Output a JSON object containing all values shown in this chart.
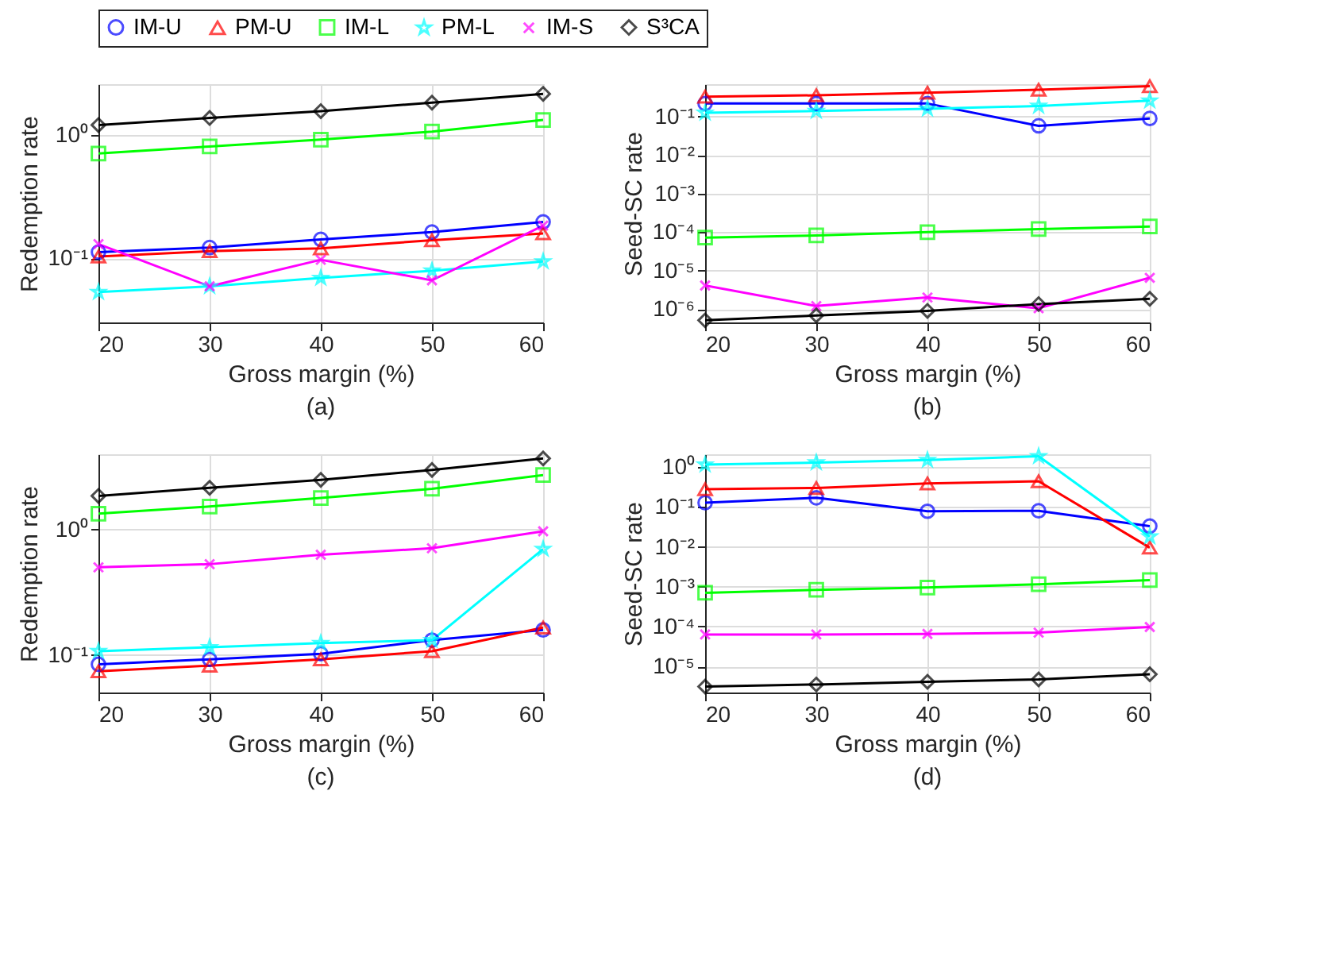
{
  "chart_data": [
    {
      "type": "line",
      "xlabel": "Gross margin (%)",
      "ylabel": "Redemption rate",
      "annotations": [
        "(a)"
      ],
      "x": [
        20,
        30,
        40,
        50,
        60
      ],
      "xlim": [
        20,
        60
      ],
      "xticks": [
        20,
        30,
        40,
        50,
        60
      ],
      "log": "y",
      "ylim": [
        0.03,
        2.6
      ],
      "yticks": [
        {
          "value": 0.1,
          "label": "10⁻¹"
        },
        {
          "value": 1,
          "label": "10⁰"
        }
      ],
      "grid": true,
      "legend": "top",
      "line_style": "solid",
      "series": [
        {
          "name": "IM-U",
          "color": "#0000ff",
          "marker": "circle",
          "values": [
            0.112,
            0.122,
            0.142,
            0.163,
            0.197
          ]
        },
        {
          "name": "PM-U",
          "color": "#ff0000",
          "marker": "triangle",
          "values": [
            0.103,
            0.114,
            0.12,
            0.14,
            0.159
          ]
        },
        {
          "name": "IM-L",
          "color": "#00ff00",
          "marker": "square",
          "values": [
            0.71,
            0.81,
            0.92,
            1.07,
            1.33
          ]
        },
        {
          "name": "PM-L",
          "color": "#00ffff",
          "marker": "star",
          "values": [
            0.053,
            0.059,
            0.069,
            0.079,
            0.094
          ]
        },
        {
          "name": "IM-S",
          "color": "#ff00ff",
          "marker": "cross",
          "values": [
            0.13,
            0.059,
            0.097,
            0.066,
            0.184
          ]
        },
        {
          "name": "S³CA",
          "color": "#000000",
          "marker": "diamond",
          "values": [
            1.21,
            1.38,
            1.57,
            1.84,
            2.17
          ]
        }
      ]
    },
    {
      "type": "line",
      "xlabel": "Gross margin (%)",
      "ylabel": "Seed-SC rate",
      "annotations": [
        "(b)"
      ],
      "x": [
        20,
        30,
        40,
        50,
        60
      ],
      "xlim": [
        20,
        60
      ],
      "xticks": [
        20,
        30,
        40,
        50,
        60
      ],
      "log": "y",
      "ylim": [
        4.5e-07,
        0.7
      ],
      "yticks": [
        {
          "value": 1e-06,
          "label": "10⁻⁶"
        },
        {
          "value": 1e-05,
          "label": "10⁻⁵"
        },
        {
          "value": 0.0001,
          "label": "10⁻⁴"
        },
        {
          "value": 0.001,
          "label": "10⁻³"
        },
        {
          "value": 0.01,
          "label": "10⁻²"
        },
        {
          "value": 0.1,
          "label": "10⁻¹"
        }
      ],
      "grid": true,
      "line_style": "solid",
      "series": [
        {
          "name": "IM-U",
          "color": "#0000ff",
          "marker": "circle",
          "values": [
            0.22,
            0.22,
            0.22,
            0.058,
            0.09
          ]
        },
        {
          "name": "PM-U",
          "color": "#ff0000",
          "marker": "triangle",
          "values": [
            0.33,
            0.36,
            0.42,
            0.5,
            0.62
          ]
        },
        {
          "name": "IM-L",
          "color": "#00ff00",
          "marker": "square",
          "values": [
            7.2e-05,
            8.2e-05,
            0.0001,
            0.00012,
            0.00014
          ]
        },
        {
          "name": "PM-L",
          "color": "#00ffff",
          "marker": "star",
          "values": [
            0.126,
            0.14,
            0.16,
            0.19,
            0.26
          ]
        },
        {
          "name": "IM-S",
          "color": "#ff00ff",
          "marker": "cross",
          "values": [
            4.1e-06,
            1.2e-06,
            2e-06,
            1.05e-06,
            6.5e-06
          ]
        },
        {
          "name": "S³CA",
          "color": "#000000",
          "marker": "diamond",
          "values": [
            5.1e-07,
            6.8e-07,
            9e-07,
            1.35e-06,
            1.85e-06
          ]
        }
      ]
    },
    {
      "type": "line",
      "xlabel": "Gross margin (%)",
      "ylabel": "Redemption rate",
      "annotations": [
        "(c)"
      ],
      "x": [
        20,
        30,
        40,
        50,
        60
      ],
      "xlim": [
        20,
        60
      ],
      "xticks": [
        20,
        30,
        40,
        50,
        60
      ],
      "log": "y",
      "ylim": [
        0.05,
        4
      ],
      "yticks": [
        {
          "value": 0.1,
          "label": "10⁻¹"
        },
        {
          "value": 1,
          "label": "10⁰"
        }
      ],
      "grid": true,
      "line_style": "solid",
      "series": [
        {
          "name": "IM-U",
          "color": "#0000ff",
          "marker": "circle",
          "values": [
            0.084,
            0.092,
            0.102,
            0.131,
            0.158
          ]
        },
        {
          "name": "PM-U",
          "color": "#ff0000",
          "marker": "triangle",
          "values": [
            0.074,
            0.082,
            0.092,
            0.107,
            0.165
          ]
        },
        {
          "name": "IM-L",
          "color": "#00ff00",
          "marker": "square",
          "values": [
            1.34,
            1.53,
            1.79,
            2.12,
            2.73
          ]
        },
        {
          "name": "PM-L",
          "color": "#00ffff",
          "marker": "star",
          "values": [
            0.107,
            0.115,
            0.124,
            0.131,
            0.7
          ]
        },
        {
          "name": "IM-S",
          "color": "#ff00ff",
          "marker": "cross",
          "values": [
            0.5,
            0.53,
            0.63,
            0.71,
            0.97
          ]
        },
        {
          "name": "S³CA",
          "color": "#000000",
          "marker": "diamond",
          "values": [
            1.86,
            2.16,
            2.5,
            3.0,
            3.7
          ]
        }
      ]
    },
    {
      "type": "line",
      "xlabel": "Gross margin (%)",
      "ylabel": "Seed-SC rate",
      "annotations": [
        "(d)"
      ],
      "x": [
        20,
        30,
        40,
        50,
        60
      ],
      "xlim": [
        20,
        60
      ],
      "xticks": [
        20,
        30,
        40,
        50,
        60
      ],
      "log": "y",
      "ylim": [
        2.2e-06,
        2.1
      ],
      "yticks": [
        {
          "value": 1e-05,
          "label": "10⁻⁵"
        },
        {
          "value": 0.0001,
          "label": "10⁻⁴"
        },
        {
          "value": 0.001,
          "label": "10⁻³"
        },
        {
          "value": 0.01,
          "label": "10⁻²"
        },
        {
          "value": 0.1,
          "label": "10⁻¹"
        },
        {
          "value": 1,
          "label": "10⁰"
        }
      ],
      "grid": true,
      "line_style": "solid",
      "series": [
        {
          "name": "IM-U",
          "color": "#0000ff",
          "marker": "circle",
          "values": [
            0.128,
            0.17,
            0.078,
            0.08,
            0.033
          ]
        },
        {
          "name": "PM-U",
          "color": "#ff0000",
          "marker": "triangle",
          "values": [
            0.28,
            0.3,
            0.39,
            0.44,
            0.0095
          ]
        },
        {
          "name": "IM-L",
          "color": "#00ff00",
          "marker": "square",
          "values": [
            0.0007,
            0.00083,
            0.00095,
            0.00115,
            0.00146
          ]
        },
        {
          "name": "PM-L",
          "color": "#00ffff",
          "marker": "star",
          "values": [
            1.15,
            1.3,
            1.5,
            1.87,
            0.018
          ]
        },
        {
          "name": "IM-S",
          "color": "#ff00ff",
          "marker": "cross",
          "values": [
            6.3e-05,
            6.3e-05,
            6.5e-05,
            7e-05,
            9.7e-05
          ]
        },
        {
          "name": "S³CA",
          "color": "#000000",
          "marker": "diamond",
          "values": [
            3.1e-06,
            3.5e-06,
            4.1e-06,
            4.7e-06,
            6.3e-06
          ]
        }
      ]
    }
  ]
}
